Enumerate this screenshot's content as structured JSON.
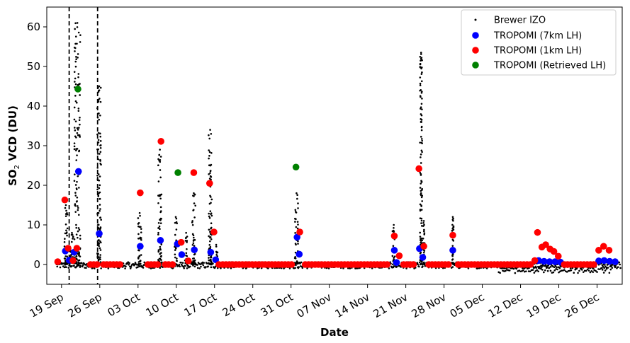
{
  "chart_data": {
    "type": "scatter",
    "title": "",
    "xlabel": "Date",
    "ylabel_main": "SO",
    "ylabel_sub": "2",
    "ylabel_rest": " VCD (DU)",
    "xlim_days": [
      -2.7,
      102.6
    ],
    "ylim": [
      -5,
      65
    ],
    "yticks": [
      0,
      10,
      20,
      30,
      40,
      50,
      60
    ],
    "xticks": [
      {
        "day": 0,
        "label": "19 Sep"
      },
      {
        "day": 7,
        "label": "26 Sep"
      },
      {
        "day": 14,
        "label": "03 Oct"
      },
      {
        "day": 21,
        "label": "10 Oct"
      },
      {
        "day": 28,
        "label": "17 Oct"
      },
      {
        "day": 35,
        "label": "24 Oct"
      },
      {
        "day": 42,
        "label": "31 Oct"
      },
      {
        "day": 49,
        "label": "07 Nov"
      },
      {
        "day": 56,
        "label": "14 Nov"
      },
      {
        "day": 63,
        "label": "21 Nov"
      },
      {
        "day": 70,
        "label": "28 Nov"
      },
      {
        "day": 77,
        "label": "05 Dec"
      },
      {
        "day": 84,
        "label": "12 Dec"
      },
      {
        "day": 91,
        "label": "19 Dec"
      },
      {
        "day": 98,
        "label": "26 Dec"
      }
    ],
    "vlines_days": [
      1.4,
      6.6
    ],
    "legend_position": "top-right",
    "grid": false,
    "series": [
      {
        "name": "Brewer IZO",
        "color": "#000000",
        "marker": "small-dot",
        "bursts": [
          {
            "x": 0.8,
            "w": 0.6,
            "max": 15
          },
          {
            "x": 1.9,
            "w": 0.6,
            "max": 8
          },
          {
            "x": 2.9,
            "w": 1.1,
            "max": 61
          },
          {
            "x": 6.9,
            "w": 0.7,
            "max": 45
          },
          {
            "x": 14.3,
            "w": 0.6,
            "max": 13
          },
          {
            "x": 18.0,
            "w": 0.6,
            "max": 29
          },
          {
            "x": 20.9,
            "w": 0.5,
            "max": 12
          },
          {
            "x": 22.8,
            "w": 0.5,
            "max": 8
          },
          {
            "x": 24.2,
            "w": 0.6,
            "max": 18
          },
          {
            "x": 27.2,
            "w": 0.6,
            "max": 34
          },
          {
            "x": 28.3,
            "w": 0.5,
            "max": 5
          },
          {
            "x": 43.0,
            "w": 0.6,
            "max": 18
          },
          {
            "x": 60.8,
            "w": 0.5,
            "max": 10
          },
          {
            "x": 65.8,
            "w": 0.4,
            "max": 53.5
          },
          {
            "x": 66.3,
            "w": 0.3,
            "max": 11
          },
          {
            "x": 71.6,
            "w": 0.3,
            "max": 12
          }
        ]
      },
      {
        "name": "TROPOMI (7km LH)",
        "color": "#0000ff",
        "points": [
          [
            0.7,
            3.4
          ],
          [
            1.4,
            1.1
          ],
          [
            2.3,
            3.1
          ],
          [
            3.1,
            23.5
          ],
          [
            6.9,
            7.8
          ],
          [
            14.4,
            4.6
          ],
          [
            18.1,
            6.1
          ],
          [
            21.2,
            5.2
          ],
          [
            22.0,
            2.5
          ],
          [
            24.3,
            3.7
          ],
          [
            27.3,
            3.1
          ],
          [
            28.2,
            1.2
          ],
          [
            43.1,
            6.9
          ],
          [
            43.5,
            2.6
          ],
          [
            60.9,
            3.6
          ],
          [
            61.3,
            0.5
          ],
          [
            65.5,
            4.0
          ],
          [
            66.1,
            1.8
          ],
          [
            71.6,
            3.6
          ],
          [
            87.3,
            1.0
          ],
          [
            88.3,
            0.8
          ],
          [
            89.3,
            0.7
          ],
          [
            90.3,
            0.7
          ],
          [
            91.3,
            0.6
          ],
          [
            98.3,
            0.9
          ],
          [
            99.3,
            1.0
          ],
          [
            100.3,
            0.8
          ],
          [
            101.3,
            0.7
          ]
        ]
      },
      {
        "name": "TROPOMI (1km LH)",
        "color": "#ff0000",
        "points": [
          [
            -0.7,
            0.7
          ],
          [
            0.6,
            16.3
          ],
          [
            1.2,
            4.1
          ],
          [
            2.1,
            1.0
          ],
          [
            2.8,
            4.1
          ],
          [
            5.3,
            0.0
          ],
          [
            5.9,
            0.0
          ],
          [
            6.5,
            0.0
          ],
          [
            7.7,
            0.0
          ],
          [
            8.3,
            0.0
          ],
          [
            8.9,
            0.0
          ],
          [
            9.5,
            0.0
          ],
          [
            10.1,
            0.0
          ],
          [
            10.7,
            0.0
          ],
          [
            14.4,
            18.1
          ],
          [
            15.8,
            0.0
          ],
          [
            16.4,
            0.0
          ],
          [
            17.0,
            0.0
          ],
          [
            17.6,
            0.0
          ],
          [
            18.2,
            31.1
          ],
          [
            19.0,
            0.0
          ],
          [
            19.6,
            0.0
          ],
          [
            20.3,
            0.0
          ],
          [
            21.9,
            5.6
          ],
          [
            23.2,
            0.9
          ],
          [
            24.2,
            23.2
          ],
          [
            27.1,
            20.5
          ],
          [
            27.9,
            8.2
          ],
          [
            28.8,
            0.0
          ],
          [
            29.5,
            0.0
          ],
          [
            30.1,
            0.0
          ],
          [
            30.7,
            0.0
          ],
          [
            31.3,
            0.0
          ],
          [
            31.9,
            0.0
          ],
          [
            32.5,
            0.0
          ],
          [
            33.1,
            0.0
          ],
          [
            33.7,
            0.0
          ],
          [
            34.3,
            0.0
          ],
          [
            34.9,
            0.0
          ],
          [
            35.5,
            0.0
          ],
          [
            36.1,
            0.0
          ],
          [
            36.7,
            0.0
          ],
          [
            37.3,
            0.0
          ],
          [
            37.9,
            0.0
          ],
          [
            38.5,
            0.0
          ],
          [
            39.1,
            0.0
          ],
          [
            39.7,
            0.0
          ],
          [
            40.3,
            0.0
          ],
          [
            40.9,
            0.0
          ],
          [
            41.5,
            0.0
          ],
          [
            42.1,
            0.0
          ],
          [
            43.6,
            8.2
          ],
          [
            44.6,
            0.0
          ],
          [
            45.2,
            0.0
          ],
          [
            45.8,
            0.0
          ],
          [
            46.4,
            0.0
          ],
          [
            47.0,
            0.0
          ],
          [
            47.6,
            0.0
          ],
          [
            48.2,
            0.0
          ],
          [
            48.8,
            0.0
          ],
          [
            49.4,
            0.0
          ],
          [
            50.0,
            0.0
          ],
          [
            50.6,
            0.0
          ],
          [
            51.2,
            0.0
          ],
          [
            51.8,
            0.0
          ],
          [
            52.4,
            0.0
          ],
          [
            53.0,
            0.0
          ],
          [
            53.6,
            0.0
          ],
          [
            54.2,
            0.0
          ],
          [
            54.8,
            0.0
          ],
          [
            55.4,
            0.0
          ],
          [
            56.0,
            0.0
          ],
          [
            56.6,
            0.0
          ],
          [
            57.2,
            0.0
          ],
          [
            57.8,
            0.0
          ],
          [
            58.4,
            0.0
          ],
          [
            59.0,
            0.0
          ],
          [
            59.6,
            0.0
          ],
          [
            60.9,
            7.2
          ],
          [
            61.8,
            2.2
          ],
          [
            62.6,
            0.0
          ],
          [
            63.2,
            0.0
          ],
          [
            63.8,
            0.0
          ],
          [
            64.4,
            0.0
          ],
          [
            65.4,
            24.2
          ],
          [
            66.3,
            4.6
          ],
          [
            67.2,
            0.0
          ],
          [
            67.8,
            0.0
          ],
          [
            68.4,
            0.0
          ],
          [
            69.0,
            0.0
          ],
          [
            69.6,
            0.0
          ],
          [
            70.2,
            0.0
          ],
          [
            70.8,
            0.0
          ],
          [
            71.6,
            7.4
          ],
          [
            72.6,
            0.0
          ],
          [
            73.2,
            0.0
          ],
          [
            73.8,
            0.0
          ],
          [
            74.4,
            0.0
          ],
          [
            75.0,
            0.0
          ],
          [
            75.6,
            0.0
          ],
          [
            76.2,
            0.0
          ],
          [
            76.8,
            0.0
          ],
          [
            77.4,
            0.0
          ],
          [
            78.0,
            0.0
          ],
          [
            78.6,
            0.0
          ],
          [
            79.2,
            0.0
          ],
          [
            79.8,
            0.0
          ],
          [
            80.4,
            0.0
          ],
          [
            81.0,
            0.0
          ],
          [
            81.6,
            0.0
          ],
          [
            82.2,
            0.0
          ],
          [
            82.8,
            0.0
          ],
          [
            83.4,
            0.0
          ],
          [
            84.0,
            0.0
          ],
          [
            84.6,
            0.0
          ],
          [
            85.2,
            0.0
          ],
          [
            85.8,
            0.0
          ],
          [
            86.6,
            1.0
          ],
          [
            87.1,
            8.1
          ],
          [
            87.9,
            4.4
          ],
          [
            88.6,
            5.0
          ],
          [
            89.4,
            3.9
          ],
          [
            90.1,
            3.3
          ],
          [
            90.9,
            2.1
          ],
          [
            92.0,
            0.0
          ],
          [
            92.6,
            0.0
          ],
          [
            93.2,
            0.0
          ],
          [
            93.8,
            0.0
          ],
          [
            94.4,
            0.0
          ],
          [
            95.0,
            0.0
          ],
          [
            95.6,
            0.0
          ],
          [
            96.2,
            0.0
          ],
          [
            96.8,
            0.0
          ],
          [
            97.4,
            0.0
          ],
          [
            98.3,
            3.6
          ],
          [
            99.2,
            4.6
          ],
          [
            100.2,
            3.6
          ]
        ]
      },
      {
        "name": "TROPOMI (Retrieved LH)",
        "color": "#008000",
        "points": [
          [
            3.0,
            44.3
          ],
          [
            21.3,
            23.2
          ],
          [
            42.9,
            24.6
          ]
        ]
      }
    ]
  }
}
